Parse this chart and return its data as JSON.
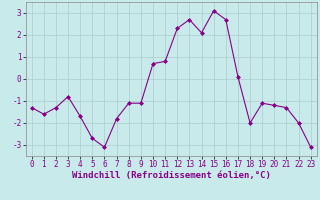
{
  "x": [
    0,
    1,
    2,
    3,
    4,
    5,
    6,
    7,
    8,
    9,
    10,
    11,
    12,
    13,
    14,
    15,
    16,
    17,
    18,
    19,
    20,
    21,
    22,
    23
  ],
  "y": [
    -1.3,
    -1.6,
    -1.3,
    -0.8,
    -1.7,
    -2.7,
    -3.1,
    -1.8,
    -1.1,
    -1.1,
    0.7,
    0.8,
    2.3,
    2.7,
    2.1,
    3.1,
    2.7,
    0.1,
    -2.0,
    -1.1,
    -1.2,
    -1.3,
    -2.0,
    -3.1
  ],
  "line_color": "#880088",
  "marker": "D",
  "marker_size": 2,
  "bg_color": "#c8eaea",
  "grid_color": "#aacccc",
  "xlabel": "Windchill (Refroidissement éolien,°C)",
  "xlim": [
    -0.5,
    23.5
  ],
  "ylim": [
    -3.5,
    3.5
  ],
  "yticks": [
    -3,
    -2,
    -1,
    0,
    1,
    2,
    3
  ],
  "xticks": [
    0,
    1,
    2,
    3,
    4,
    5,
    6,
    7,
    8,
    9,
    10,
    11,
    12,
    13,
    14,
    15,
    16,
    17,
    18,
    19,
    20,
    21,
    22,
    23
  ],
  "label_fontsize": 6.5,
  "tick_fontsize": 5.5
}
